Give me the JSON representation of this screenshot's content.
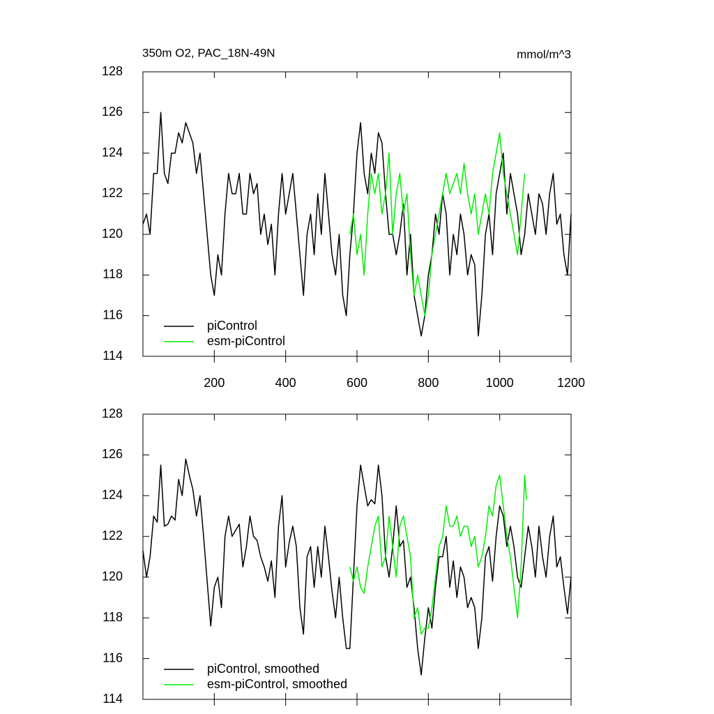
{
  "chart_data": [
    {
      "type": "line",
      "title": "350m O2, PAC_18N-49N",
      "units": "mmol/m^3",
      "xlim": [
        0,
        1200
      ],
      "ylim": [
        114,
        128
      ],
      "xticks": [
        200,
        400,
        600,
        800,
        1000,
        1200
      ],
      "yticks": [
        114,
        116,
        118,
        120,
        122,
        124,
        126,
        128
      ],
      "xtick_labels": true,
      "legend": "lower-left",
      "series": [
        {
          "name": "piControl",
          "color": "#000000",
          "x": [
            0,
            10,
            20,
            30,
            40,
            50,
            60,
            70,
            80,
            90,
            100,
            110,
            120,
            130,
            140,
            150,
            160,
            170,
            180,
            190,
            200,
            210,
            220,
            230,
            240,
            250,
            260,
            270,
            280,
            290,
            300,
            310,
            320,
            330,
            340,
            350,
            360,
            370,
            380,
            390,
            400,
            410,
            420,
            430,
            440,
            450,
            460,
            470,
            480,
            490,
            500,
            510,
            520,
            530,
            540,
            550,
            560,
            570,
            580,
            590,
            600,
            610,
            620,
            630,
            640,
            650,
            660,
            670,
            680,
            690,
            700,
            710,
            720,
            730,
            740,
            750,
            760,
            770,
            780,
            790,
            800,
            810,
            820,
            830,
            840,
            850,
            860,
            870,
            880,
            890,
            900,
            910,
            920,
            930,
            940,
            950,
            960,
            970,
            980,
            990,
            1000,
            1010,
            1020,
            1030,
            1040,
            1050,
            1060,
            1070,
            1080,
            1090,
            1100,
            1110,
            1120,
            1130,
            1140,
            1150,
            1160,
            1170,
            1180,
            1190,
            1200
          ],
          "values": [
            120.5,
            121,
            120,
            123,
            123,
            126,
            123,
            122.5,
            124,
            124,
            125,
            124.5,
            125.5,
            125,
            124.5,
            123,
            124,
            122,
            120,
            118,
            117,
            119,
            118,
            121,
            123,
            122,
            122,
            123,
            121,
            121,
            123,
            122,
            122.5,
            120,
            121,
            119.5,
            120.5,
            118,
            121,
            123,
            121,
            122,
            123,
            121,
            119,
            117,
            120,
            121,
            119,
            122,
            120,
            123,
            121,
            119,
            118,
            120,
            117,
            116,
            119,
            121,
            124,
            125.5,
            123,
            122,
            124,
            123,
            125,
            124.5,
            122,
            120,
            120,
            119,
            120,
            121.5,
            118,
            120,
            117,
            116,
            115,
            116,
            118,
            119,
            121,
            120,
            122,
            121,
            118,
            120,
            119,
            121,
            120,
            118,
            119,
            118.5,
            115,
            117,
            120,
            121,
            119,
            122,
            123,
            124,
            121,
            123,
            122,
            121,
            119,
            120,
            122,
            121,
            120,
            122,
            121.5,
            120,
            122,
            123,
            120.5,
            121,
            119,
            118,
            121
          ]
        },
        {
          "name": "esm-piControl",
          "color": "#00ee00",
          "x": [
            580,
            590,
            600,
            610,
            620,
            630,
            640,
            650,
            660,
            670,
            680,
            690,
            700,
            710,
            720,
            730,
            740,
            750,
            760,
            770,
            780,
            790,
            800,
            810,
            820,
            830,
            840,
            850,
            860,
            870,
            880,
            890,
            900,
            910,
            920,
            930,
            940,
            950,
            960,
            970,
            980,
            990,
            1000,
            1010,
            1020,
            1030,
            1040,
            1050,
            1060,
            1070
          ],
          "values": [
            120,
            121,
            119,
            120,
            118,
            121,
            123,
            122,
            123,
            121,
            122,
            124,
            120,
            122,
            123,
            121,
            122,
            119,
            117,
            118,
            117,
            116,
            117,
            119,
            120,
            121,
            122,
            123,
            122,
            122.5,
            123,
            122,
            123.5,
            122,
            121,
            122,
            120,
            121,
            122,
            121,
            123,
            124,
            125,
            123,
            122,
            121,
            120,
            119,
            121,
            123
          ]
        }
      ]
    },
    {
      "type": "line",
      "xlim": [
        0,
        1200
      ],
      "ylim": [
        114,
        128
      ],
      "xticks": [
        200,
        400,
        600,
        800,
        1000,
        1200
      ],
      "yticks": [
        114,
        116,
        118,
        120,
        122,
        124,
        126,
        128
      ],
      "xtick_labels": false,
      "legend": "lower-left",
      "series": [
        {
          "name": "piControl, smoothed",
          "color": "#000000",
          "x": [
            0,
            10,
            20,
            30,
            40,
            50,
            60,
            70,
            80,
            90,
            100,
            110,
            120,
            130,
            140,
            150,
            160,
            170,
            180,
            190,
            200,
            210,
            220,
            230,
            240,
            250,
            260,
            270,
            280,
            290,
            300,
            310,
            320,
            330,
            340,
            350,
            360,
            370,
            380,
            390,
            400,
            410,
            420,
            430,
            440,
            450,
            460,
            470,
            480,
            490,
            500,
            510,
            520,
            530,
            540,
            550,
            560,
            570,
            580,
            590,
            600,
            610,
            620,
            630,
            640,
            650,
            660,
            670,
            680,
            690,
            700,
            710,
            720,
            730,
            740,
            750,
            760,
            770,
            780,
            790,
            800,
            810,
            820,
            830,
            840,
            850,
            860,
            870,
            880,
            890,
            900,
            910,
            920,
            930,
            940,
            950,
            960,
            970,
            980,
            990,
            1000,
            1010,
            1020,
            1030,
            1040,
            1050,
            1060,
            1070,
            1080,
            1090,
            1100,
            1110,
            1120,
            1130,
            1140,
            1150,
            1160,
            1170,
            1180,
            1190,
            1200
          ],
          "values": [
            121.3,
            120,
            121,
            123,
            122.7,
            125.5,
            122.5,
            122.6,
            123,
            122.8,
            124.8,
            124,
            125.8,
            125,
            124.3,
            123,
            124,
            122,
            119.8,
            117.6,
            119.5,
            120,
            118.5,
            122,
            123,
            122,
            122.3,
            122.6,
            120.5,
            121.5,
            123,
            122,
            121.8,
            121,
            120.5,
            119.8,
            120.8,
            119,
            122.5,
            124,
            120.5,
            121.7,
            122.5,
            121.5,
            118.5,
            117.2,
            121,
            121.5,
            119.5,
            121.5,
            120,
            122.5,
            121,
            119.3,
            118,
            120,
            118,
            116.5,
            116.5,
            120,
            123.5,
            125.5,
            124.5,
            123.5,
            123.8,
            123.6,
            125.5,
            124,
            121,
            120,
            121.5,
            123.5,
            121.5,
            121.8,
            119.5,
            120,
            118.5,
            116.5,
            115.2,
            117,
            118.5,
            117.5,
            119.5,
            121,
            121,
            122,
            119.5,
            120.8,
            119,
            120.5,
            120,
            118.5,
            119,
            118.5,
            116.5,
            118,
            121,
            121.5,
            119.8,
            122,
            123.5,
            123,
            121.5,
            122.5,
            121.5,
            120,
            119.5,
            121,
            122.5,
            121.5,
            120,
            122.5,
            121,
            120,
            122,
            123,
            120.5,
            121,
            119.5,
            118.2,
            120
          ]
        },
        {
          "name": "esm-piControl, smoothed",
          "color": "#00ee00",
          "x": [
            580,
            590,
            600,
            610,
            620,
            630,
            640,
            650,
            660,
            670,
            680,
            690,
            700,
            710,
            720,
            730,
            740,
            750,
            760,
            770,
            780,
            790,
            800,
            810,
            820,
            830,
            840,
            850,
            860,
            870,
            880,
            890,
            900,
            910,
            920,
            930,
            940,
            950,
            960,
            970,
            980,
            990,
            1000,
            1010,
            1020,
            1030,
            1040,
            1050,
            1060,
            1070,
            1075
          ],
          "values": [
            120.5,
            119.8,
            120.5,
            119.5,
            119.2,
            120.5,
            121.5,
            122.5,
            123,
            120.5,
            121,
            123,
            121.5,
            120,
            122.5,
            123,
            122,
            121,
            118,
            118.5,
            117.2,
            117.5,
            117.5,
            118.5,
            120,
            121.5,
            122,
            123.5,
            122.5,
            122.5,
            123,
            122,
            122.5,
            122.5,
            121.5,
            122,
            120.5,
            121,
            122,
            123.5,
            123,
            124.5,
            125,
            123.5,
            122,
            121,
            119.5,
            118,
            120.5,
            125,
            123.8
          ]
        }
      ]
    }
  ]
}
